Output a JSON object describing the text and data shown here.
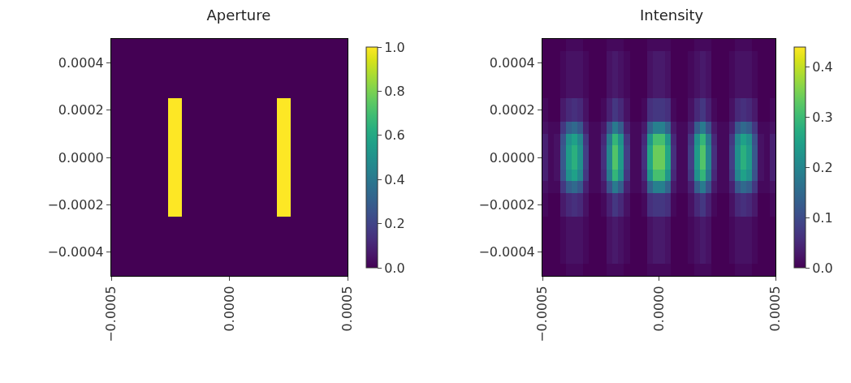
{
  "chart_data": [
    {
      "type": "heatmap",
      "title": "Aperture",
      "x": [
        -0.00049,
        -0.00047,
        -0.00045,
        -0.00043,
        -0.00041,
        -0.00039,
        -0.00037,
        -0.00035,
        -0.00033,
        -0.00031,
        -0.00029,
        -0.00027,
        -0.00025,
        -0.00023,
        -0.00021,
        -0.00019,
        -0.00017,
        -0.00015,
        -0.00013,
        -0.00011,
        -9e-05,
        -7e-05,
        -5e-05,
        -3e-05,
        -1e-05,
        1e-05,
        3e-05,
        5e-05,
        7e-05,
        9e-05,
        0.00011,
        0.00013,
        0.00015,
        0.00017,
        0.00019,
        0.00021,
        0.00023,
        0.00025,
        0.00027,
        0.00029,
        0.00031,
        0.00033,
        0.00035,
        0.00037,
        0.00039,
        0.00041,
        0.00043,
        0.00045,
        0.00047,
        0.00049
      ],
      "y": [
        0.000475,
        0.000425,
        0.000375,
        0.000325,
        0.000275,
        0.000225,
        0.000175,
        0.000125,
        7.5e-05,
        2.5e-05,
        -2.5e-05,
        -7.5e-05,
        -0.000125,
        -0.000175,
        -0.000225,
        -0.000275,
        -0.000325,
        -0.000375,
        -0.000425,
        -0.000475
      ],
      "cells": [
        [
          0,
          0,
          0,
          0,
          0,
          0,
          0,
          0,
          0,
          0,
          0,
          0,
          0,
          0,
          0,
          0,
          0,
          0,
          0,
          0,
          0,
          0,
          0,
          0,
          0,
          0,
          0,
          0,
          0,
          0,
          0,
          0,
          0,
          0,
          0,
          0,
          0,
          0,
          0,
          0,
          0,
          0,
          0,
          0,
          0,
          0,
          0,
          0,
          0,
          0
        ],
        [
          0,
          0,
          0,
          0,
          0,
          0,
          0,
          0,
          0,
          0,
          0,
          0,
          0,
          0,
          0,
          0,
          0,
          0,
          0,
          0,
          0,
          0,
          0,
          0,
          0,
          0,
          0,
          0,
          0,
          0,
          0,
          0,
          0,
          0,
          0,
          0,
          0,
          0,
          0,
          0,
          0,
          0,
          0,
          0,
          0,
          0,
          0,
          0,
          0,
          0
        ],
        [
          0,
          0,
          0,
          0,
          0,
          0,
          0,
          0,
          0,
          0,
          0,
          0,
          0,
          0,
          0,
          0,
          0,
          0,
          0,
          0,
          0,
          0,
          0,
          0,
          0,
          0,
          0,
          0,
          0,
          0,
          0,
          0,
          0,
          0,
          0,
          0,
          0,
          0,
          0,
          0,
          0,
          0,
          0,
          0,
          0,
          0,
          0,
          0,
          0,
          0
        ],
        [
          0,
          0,
          0,
          0,
          0,
          0,
          0,
          0,
          0,
          0,
          0,
          0,
          0,
          0,
          0,
          0,
          0,
          0,
          0,
          0,
          0,
          0,
          0,
          0,
          0,
          0,
          0,
          0,
          0,
          0,
          0,
          0,
          0,
          0,
          0,
          0,
          0,
          0,
          0,
          0,
          0,
          0,
          0,
          0,
          0,
          0,
          0,
          0,
          0,
          0
        ],
        [
          0,
          0,
          0,
          0,
          0,
          0,
          0,
          0,
          0,
          0,
          0,
          0,
          0,
          0,
          0,
          0,
          0,
          0,
          0,
          0,
          0,
          0,
          0,
          0,
          0,
          0,
          0,
          0,
          0,
          0,
          0,
          0,
          0,
          0,
          0,
          0,
          0,
          0,
          0,
          0,
          0,
          0,
          0,
          0,
          0,
          0,
          0,
          0,
          0,
          0
        ],
        [
          0,
          0,
          0,
          0,
          0,
          0,
          0,
          0,
          0,
          0,
          0,
          0,
          1,
          1,
          1,
          0,
          0,
          0,
          0,
          0,
          0,
          0,
          0,
          0,
          0,
          0,
          0,
          0,
          0,
          0,
          0,
          0,
          0,
          0,
          0,
          1,
          1,
          1,
          0,
          0,
          0,
          0,
          0,
          0,
          0,
          0,
          0,
          0,
          0,
          0
        ],
        [
          0,
          0,
          0,
          0,
          0,
          0,
          0,
          0,
          0,
          0,
          0,
          0,
          1,
          1,
          1,
          0,
          0,
          0,
          0,
          0,
          0,
          0,
          0,
          0,
          0,
          0,
          0,
          0,
          0,
          0,
          0,
          0,
          0,
          0,
          0,
          1,
          1,
          1,
          0,
          0,
          0,
          0,
          0,
          0,
          0,
          0,
          0,
          0,
          0,
          0
        ],
        [
          0,
          0,
          0,
          0,
          0,
          0,
          0,
          0,
          0,
          0,
          0,
          0,
          1,
          1,
          1,
          0,
          0,
          0,
          0,
          0,
          0,
          0,
          0,
          0,
          0,
          0,
          0,
          0,
          0,
          0,
          0,
          0,
          0,
          0,
          0,
          1,
          1,
          1,
          0,
          0,
          0,
          0,
          0,
          0,
          0,
          0,
          0,
          0,
          0,
          0
        ],
        [
          0,
          0,
          0,
          0,
          0,
          0,
          0,
          0,
          0,
          0,
          0,
          0,
          1,
          1,
          1,
          0,
          0,
          0,
          0,
          0,
          0,
          0,
          0,
          0,
          0,
          0,
          0,
          0,
          0,
          0,
          0,
          0,
          0,
          0,
          0,
          1,
          1,
          1,
          0,
          0,
          0,
          0,
          0,
          0,
          0,
          0,
          0,
          0,
          0,
          0
        ],
        [
          0,
          0,
          0,
          0,
          0,
          0,
          0,
          0,
          0,
          0,
          0,
          0,
          1,
          1,
          1,
          0,
          0,
          0,
          0,
          0,
          0,
          0,
          0,
          0,
          0,
          0,
          0,
          0,
          0,
          0,
          0,
          0,
          0,
          0,
          0,
          1,
          1,
          1,
          0,
          0,
          0,
          0,
          0,
          0,
          0,
          0,
          0,
          0,
          0,
          0
        ],
        [
          0,
          0,
          0,
          0,
          0,
          0,
          0,
          0,
          0,
          0,
          0,
          0,
          1,
          1,
          1,
          0,
          0,
          0,
          0,
          0,
          0,
          0,
          0,
          0,
          0,
          0,
          0,
          0,
          0,
          0,
          0,
          0,
          0,
          0,
          0,
          1,
          1,
          1,
          0,
          0,
          0,
          0,
          0,
          0,
          0,
          0,
          0,
          0,
          0,
          0
        ],
        [
          0,
          0,
          0,
          0,
          0,
          0,
          0,
          0,
          0,
          0,
          0,
          0,
          1,
          1,
          1,
          0,
          0,
          0,
          0,
          0,
          0,
          0,
          0,
          0,
          0,
          0,
          0,
          0,
          0,
          0,
          0,
          0,
          0,
          0,
          0,
          1,
          1,
          1,
          0,
          0,
          0,
          0,
          0,
          0,
          0,
          0,
          0,
          0,
          0,
          0
        ],
        [
          0,
          0,
          0,
          0,
          0,
          0,
          0,
          0,
          0,
          0,
          0,
          0,
          1,
          1,
          1,
          0,
          0,
          0,
          0,
          0,
          0,
          0,
          0,
          0,
          0,
          0,
          0,
          0,
          0,
          0,
          0,
          0,
          0,
          0,
          0,
          1,
          1,
          1,
          0,
          0,
          0,
          0,
          0,
          0,
          0,
          0,
          0,
          0,
          0,
          0
        ],
        [
          0,
          0,
          0,
          0,
          0,
          0,
          0,
          0,
          0,
          0,
          0,
          0,
          1,
          1,
          1,
          0,
          0,
          0,
          0,
          0,
          0,
          0,
          0,
          0,
          0,
          0,
          0,
          0,
          0,
          0,
          0,
          0,
          0,
          0,
          0,
          1,
          1,
          1,
          0,
          0,
          0,
          0,
          0,
          0,
          0,
          0,
          0,
          0,
          0,
          0
        ],
        [
          0,
          0,
          0,
          0,
          0,
          0,
          0,
          0,
          0,
          0,
          0,
          0,
          1,
          1,
          1,
          0,
          0,
          0,
          0,
          0,
          0,
          0,
          0,
          0,
          0,
          0,
          0,
          0,
          0,
          0,
          0,
          0,
          0,
          0,
          0,
          1,
          1,
          1,
          0,
          0,
          0,
          0,
          0,
          0,
          0,
          0,
          0,
          0,
          0,
          0
        ],
        [
          0,
          0,
          0,
          0,
          0,
          0,
          0,
          0,
          0,
          0,
          0,
          0,
          0,
          0,
          0,
          0,
          0,
          0,
          0,
          0,
          0,
          0,
          0,
          0,
          0,
          0,
          0,
          0,
          0,
          0,
          0,
          0,
          0,
          0,
          0,
          0,
          0,
          0,
          0,
          0,
          0,
          0,
          0,
          0,
          0,
          0,
          0,
          0,
          0,
          0
        ],
        [
          0,
          0,
          0,
          0,
          0,
          0,
          0,
          0,
          0,
          0,
          0,
          0,
          0,
          0,
          0,
          0,
          0,
          0,
          0,
          0,
          0,
          0,
          0,
          0,
          0,
          0,
          0,
          0,
          0,
          0,
          0,
          0,
          0,
          0,
          0,
          0,
          0,
          0,
          0,
          0,
          0,
          0,
          0,
          0,
          0,
          0,
          0,
          0,
          0,
          0
        ],
        [
          0,
          0,
          0,
          0,
          0,
          0,
          0,
          0,
          0,
          0,
          0,
          0,
          0,
          0,
          0,
          0,
          0,
          0,
          0,
          0,
          0,
          0,
          0,
          0,
          0,
          0,
          0,
          0,
          0,
          0,
          0,
          0,
          0,
          0,
          0,
          0,
          0,
          0,
          0,
          0,
          0,
          0,
          0,
          0,
          0,
          0,
          0,
          0,
          0,
          0
        ],
        [
          0,
          0,
          0,
          0,
          0,
          0,
          0,
          0,
          0,
          0,
          0,
          0,
          0,
          0,
          0,
          0,
          0,
          0,
          0,
          0,
          0,
          0,
          0,
          0,
          0,
          0,
          0,
          0,
          0,
          0,
          0,
          0,
          0,
          0,
          0,
          0,
          0,
          0,
          0,
          0,
          0,
          0,
          0,
          0,
          0,
          0,
          0,
          0,
          0,
          0
        ],
        [
          0,
          0,
          0,
          0,
          0,
          0,
          0,
          0,
          0,
          0,
          0,
          0,
          0,
          0,
          0,
          0,
          0,
          0,
          0,
          0,
          0,
          0,
          0,
          0,
          0,
          0,
          0,
          0,
          0,
          0,
          0,
          0,
          0,
          0,
          0,
          0,
          0,
          0,
          0,
          0,
          0,
          0,
          0,
          0,
          0,
          0,
          0,
          0,
          0,
          0
        ]
      ],
      "xlim": [
        -0.0005,
        0.0005
      ],
      "ylim": [
        -0.0005,
        0.0005
      ],
      "xticks": [
        {
          "value": -0.0005,
          "label": "−0.0005"
        },
        {
          "value": 0,
          "label": "0.0000"
        },
        {
          "value": 0.0005,
          "label": "0.0005"
        }
      ],
      "yticks": [
        {
          "value": -0.0004,
          "label": "−0.0004"
        },
        {
          "value": -0.0002,
          "label": "−0.0002"
        },
        {
          "value": 0,
          "label": "0.0000"
        },
        {
          "value": 0.0002,
          "label": "0.0002"
        },
        {
          "value": 0.0004,
          "label": "0.0004"
        }
      ],
      "clim": [
        0,
        1
      ],
      "cticks": [
        {
          "value": 0,
          "label": "0.0"
        },
        {
          "value": 0.2,
          "label": "0.2"
        },
        {
          "value": 0.4,
          "label": "0.4"
        },
        {
          "value": 0.6,
          "label": "0.6"
        },
        {
          "value": 0.8,
          "label": "0.8"
        },
        {
          "value": 1,
          "label": "1.0"
        }
      ]
    },
    {
      "type": "heatmap",
      "title": "Intensity",
      "x": [
        -0.0004875,
        -0.0004625,
        -0.0004375,
        -0.0004125,
        -0.0003875,
        -0.0003625,
        -0.0003375,
        -0.0003125,
        -0.0002875,
        -0.0002625,
        -0.0002375,
        -0.0002125,
        -0.0001875,
        -0.0001625,
        -0.0001375,
        -0.0001125,
        -8.75e-05,
        -6.25e-05,
        -3.75e-05,
        -1.25e-05,
        1.25e-05,
        3.75e-05,
        6.25e-05,
        8.75e-05,
        0.0001125,
        0.0001375,
        0.0001625,
        0.0001875,
        0.0002125,
        0.0002375,
        0.0002625,
        0.0002875,
        0.0003125,
        0.0003375,
        0.0003625,
        0.0003875,
        0.0004125,
        0.0004375,
        0.0004625,
        0.0004875
      ],
      "y": [
        0.000475,
        0.000425,
        0.000375,
        0.000325,
        0.000275,
        0.000225,
        0.000175,
        0.000125,
        7.5e-05,
        2.5e-05,
        -2.5e-05,
        -7.5e-05,
        -0.000125,
        -0.000175,
        -0.000225,
        -0.000275,
        -0.000325,
        -0.000375,
        -0.000425,
        -0.000475
      ],
      "cells": [
        [
          0,
          0,
          0,
          0,
          0.01,
          0.01,
          0.01,
          0,
          0,
          0,
          0,
          0.01,
          0.01,
          0.01,
          0,
          0,
          0,
          0,
          0.01,
          0.01,
          0.01,
          0.01,
          0,
          0,
          0,
          0,
          0.01,
          0.01,
          0.01,
          0,
          0,
          0,
          0,
          0.01,
          0.01,
          0.01,
          0,
          0,
          0,
          0
        ],
        [
          0,
          0,
          0,
          0.01,
          0.02,
          0.02,
          0.02,
          0.01,
          0,
          0,
          0,
          0.02,
          0.03,
          0.02,
          0.01,
          0,
          0,
          0,
          0.02,
          0.03,
          0.03,
          0.02,
          0,
          0,
          0,
          0.01,
          0.02,
          0.03,
          0.02,
          0,
          0,
          0,
          0.01,
          0.02,
          0.02,
          0.02,
          0.01,
          0,
          0,
          0
        ],
        [
          0,
          0,
          0,
          0.01,
          0.02,
          0.02,
          0.02,
          0.01,
          0,
          0,
          0,
          0.02,
          0.03,
          0.02,
          0.01,
          0,
          0,
          0,
          0.02,
          0.03,
          0.03,
          0.02,
          0,
          0,
          0,
          0.01,
          0.02,
          0.03,
          0.02,
          0,
          0,
          0,
          0.01,
          0.02,
          0.02,
          0.02,
          0.01,
          0,
          0,
          0
        ],
        [
          0,
          0,
          0,
          0.01,
          0.02,
          0.02,
          0.02,
          0.01,
          0,
          0,
          0,
          0.02,
          0.03,
          0.02,
          0.01,
          0,
          0,
          0,
          0.02,
          0.03,
          0.03,
          0.02,
          0,
          0,
          0,
          0.01,
          0.02,
          0.03,
          0.02,
          0,
          0,
          0,
          0.01,
          0.02,
          0.02,
          0.02,
          0.01,
          0,
          0,
          0
        ],
        [
          0,
          0,
          0,
          0.01,
          0.02,
          0.02,
          0.02,
          0.01,
          0,
          0,
          0,
          0.02,
          0.03,
          0.02,
          0.01,
          0,
          0,
          0,
          0.02,
          0.03,
          0.03,
          0.02,
          0,
          0,
          0,
          0.01,
          0.02,
          0.03,
          0.02,
          0,
          0,
          0,
          0.01,
          0.02,
          0.02,
          0.02,
          0.01,
          0,
          0,
          0
        ],
        [
          0.01,
          0,
          0,
          0.03,
          0.05,
          0.06,
          0.05,
          0.02,
          0,
          0,
          0.01,
          0.04,
          0.07,
          0.05,
          0.02,
          0,
          0,
          0.01,
          0.06,
          0.07,
          0.07,
          0.06,
          0.01,
          0,
          0,
          0.02,
          0.05,
          0.07,
          0.04,
          0.01,
          0,
          0,
          0.02,
          0.05,
          0.06,
          0.05,
          0.03,
          0,
          0,
          0.01
        ],
        [
          0.01,
          0,
          0,
          0.03,
          0.05,
          0.06,
          0.05,
          0.02,
          0,
          0,
          0.01,
          0.04,
          0.07,
          0.05,
          0.02,
          0,
          0,
          0.01,
          0.06,
          0.07,
          0.07,
          0.06,
          0.01,
          0,
          0,
          0.02,
          0.05,
          0.07,
          0.04,
          0.01,
          0,
          0,
          0.02,
          0.05,
          0.06,
          0.05,
          0.03,
          0,
          0,
          0.01
        ],
        [
          0.02,
          0.01,
          0.01,
          0.07,
          0.13,
          0.15,
          0.12,
          0.04,
          0.01,
          0.01,
          0.03,
          0.11,
          0.18,
          0.13,
          0.04,
          0.01,
          0.01,
          0.03,
          0.14,
          0.19,
          0.19,
          0.14,
          0.03,
          0.01,
          0.01,
          0.04,
          0.13,
          0.18,
          0.11,
          0.03,
          0.01,
          0.01,
          0.04,
          0.12,
          0.15,
          0.13,
          0.07,
          0.01,
          0.01,
          0.02
        ],
        [
          0.04,
          0.01,
          0.02,
          0.11,
          0.22,
          0.25,
          0.2,
          0.07,
          0.01,
          0.01,
          0.05,
          0.18,
          0.29,
          0.22,
          0.07,
          0.01,
          0.01,
          0.05,
          0.23,
          0.31,
          0.31,
          0.23,
          0.05,
          0.01,
          0.01,
          0.07,
          0.22,
          0.29,
          0.18,
          0.05,
          0.01,
          0.01,
          0.07,
          0.2,
          0.25,
          0.22,
          0.11,
          0.02,
          0.01,
          0.04
        ],
        [
          0.04,
          0.01,
          0.02,
          0.12,
          0.24,
          0.28,
          0.22,
          0.08,
          0.01,
          0.01,
          0.06,
          0.2,
          0.32,
          0.24,
          0.08,
          0.01,
          0.01,
          0.06,
          0.26,
          0.34,
          0.34,
          0.26,
          0.06,
          0.01,
          0.01,
          0.08,
          0.24,
          0.32,
          0.2,
          0.06,
          0.01,
          0.01,
          0.08,
          0.22,
          0.28,
          0.24,
          0.12,
          0.02,
          0.01,
          0.04
        ],
        [
          0.04,
          0.01,
          0.02,
          0.12,
          0.24,
          0.28,
          0.22,
          0.08,
          0.01,
          0.01,
          0.06,
          0.2,
          0.32,
          0.24,
          0.08,
          0.01,
          0.01,
          0.06,
          0.26,
          0.34,
          0.34,
          0.26,
          0.06,
          0.01,
          0.01,
          0.08,
          0.24,
          0.32,
          0.2,
          0.06,
          0.01,
          0.01,
          0.08,
          0.22,
          0.28,
          0.24,
          0.12,
          0.02,
          0.01,
          0.04
        ],
        [
          0.04,
          0.01,
          0.02,
          0.11,
          0.22,
          0.25,
          0.2,
          0.07,
          0.01,
          0.01,
          0.05,
          0.18,
          0.29,
          0.22,
          0.07,
          0.01,
          0.01,
          0.05,
          0.23,
          0.31,
          0.31,
          0.23,
          0.05,
          0.01,
          0.01,
          0.07,
          0.22,
          0.29,
          0.18,
          0.05,
          0.01,
          0.01,
          0.07,
          0.2,
          0.25,
          0.22,
          0.11,
          0.02,
          0.01,
          0.04
        ],
        [
          0.02,
          0.01,
          0.01,
          0.07,
          0.13,
          0.15,
          0.12,
          0.04,
          0.01,
          0.01,
          0.03,
          0.11,
          0.18,
          0.13,
          0.04,
          0.01,
          0.01,
          0.03,
          0.14,
          0.19,
          0.19,
          0.14,
          0.03,
          0.01,
          0.01,
          0.04,
          0.13,
          0.18,
          0.11,
          0.03,
          0.01,
          0.01,
          0.04,
          0.12,
          0.15,
          0.13,
          0.07,
          0.01,
          0.01,
          0.02
        ],
        [
          0.01,
          0,
          0,
          0.03,
          0.05,
          0.06,
          0.05,
          0.02,
          0,
          0,
          0.01,
          0.04,
          0.07,
          0.05,
          0.02,
          0,
          0,
          0.01,
          0.06,
          0.07,
          0.07,
          0.06,
          0.01,
          0,
          0,
          0.02,
          0.05,
          0.07,
          0.04,
          0.01,
          0,
          0,
          0.02,
          0.05,
          0.06,
          0.05,
          0.03,
          0,
          0,
          0.01
        ],
        [
          0.01,
          0,
          0,
          0.03,
          0.05,
          0.06,
          0.05,
          0.02,
          0,
          0,
          0.01,
          0.04,
          0.07,
          0.05,
          0.02,
          0,
          0,
          0.01,
          0.06,
          0.07,
          0.07,
          0.06,
          0.01,
          0,
          0,
          0.02,
          0.05,
          0.07,
          0.04,
          0.01,
          0,
          0,
          0.02,
          0.05,
          0.06,
          0.05,
          0.03,
          0,
          0,
          0.01
        ],
        [
          0,
          0,
          0,
          0.01,
          0.02,
          0.02,
          0.02,
          0.01,
          0,
          0,
          0,
          0.02,
          0.03,
          0.02,
          0.01,
          0,
          0,
          0,
          0.02,
          0.03,
          0.03,
          0.02,
          0,
          0,
          0,
          0.01,
          0.02,
          0.03,
          0.02,
          0,
          0,
          0,
          0.01,
          0.02,
          0.02,
          0.02,
          0.01,
          0,
          0,
          0
        ],
        [
          0,
          0,
          0,
          0.01,
          0.02,
          0.02,
          0.02,
          0.01,
          0,
          0,
          0,
          0.02,
          0.03,
          0.02,
          0.01,
          0,
          0,
          0,
          0.02,
          0.03,
          0.03,
          0.02,
          0,
          0,
          0,
          0.01,
          0.02,
          0.03,
          0.02,
          0,
          0,
          0,
          0.01,
          0.02,
          0.02,
          0.02,
          0.01,
          0,
          0,
          0
        ],
        [
          0,
          0,
          0,
          0.01,
          0.02,
          0.02,
          0.02,
          0.01,
          0,
          0,
          0,
          0.02,
          0.03,
          0.02,
          0.01,
          0,
          0,
          0,
          0.02,
          0.03,
          0.03,
          0.02,
          0,
          0,
          0,
          0.01,
          0.02,
          0.03,
          0.02,
          0,
          0,
          0,
          0.01,
          0.02,
          0.02,
          0.02,
          0.01,
          0,
          0,
          0
        ],
        [
          0,
          0,
          0,
          0.01,
          0.02,
          0.02,
          0.02,
          0.01,
          0,
          0,
          0,
          0.02,
          0.03,
          0.02,
          0.01,
          0,
          0,
          0,
          0.02,
          0.03,
          0.03,
          0.02,
          0,
          0,
          0,
          0.01,
          0.02,
          0.03,
          0.02,
          0,
          0,
          0,
          0.01,
          0.02,
          0.02,
          0.02,
          0.01,
          0,
          0,
          0
        ],
        [
          0,
          0,
          0,
          0,
          0.01,
          0.01,
          0.01,
          0,
          0,
          0,
          0,
          0.01,
          0.01,
          0.01,
          0,
          0,
          0,
          0,
          0.01,
          0.01,
          0.01,
          0.01,
          0,
          0,
          0,
          0,
          0.01,
          0.01,
          0.01,
          0,
          0,
          0,
          0,
          0.01,
          0.01,
          0.01,
          0,
          0,
          0,
          0
        ]
      ],
      "xlim": [
        -0.0005,
        0.0005
      ],
      "ylim": [
        -0.0005,
        0.0005
      ],
      "xticks": [
        {
          "value": -0.0005,
          "label": "−0.0005"
        },
        {
          "value": 0,
          "label": "0.0000"
        },
        {
          "value": 0.0005,
          "label": "0.0005"
        }
      ],
      "yticks": [
        {
          "value": -0.0004,
          "label": "−0.0004"
        },
        {
          "value": -0.0002,
          "label": "−0.0002"
        },
        {
          "value": 0,
          "label": "0.0000"
        },
        {
          "value": 0.0002,
          "label": "0.0002"
        },
        {
          "value": 0.0004,
          "label": "0.0004"
        }
      ],
      "clim": [
        0,
        0.44
      ],
      "cticks": [
        {
          "value": 0,
          "label": "0.0"
        },
        {
          "value": 0.1,
          "label": "0.1"
        },
        {
          "value": 0.2,
          "label": "0.2"
        },
        {
          "value": 0.3,
          "label": "0.3"
        },
        {
          "value": 0.4,
          "label": "0.4"
        }
      ]
    }
  ]
}
